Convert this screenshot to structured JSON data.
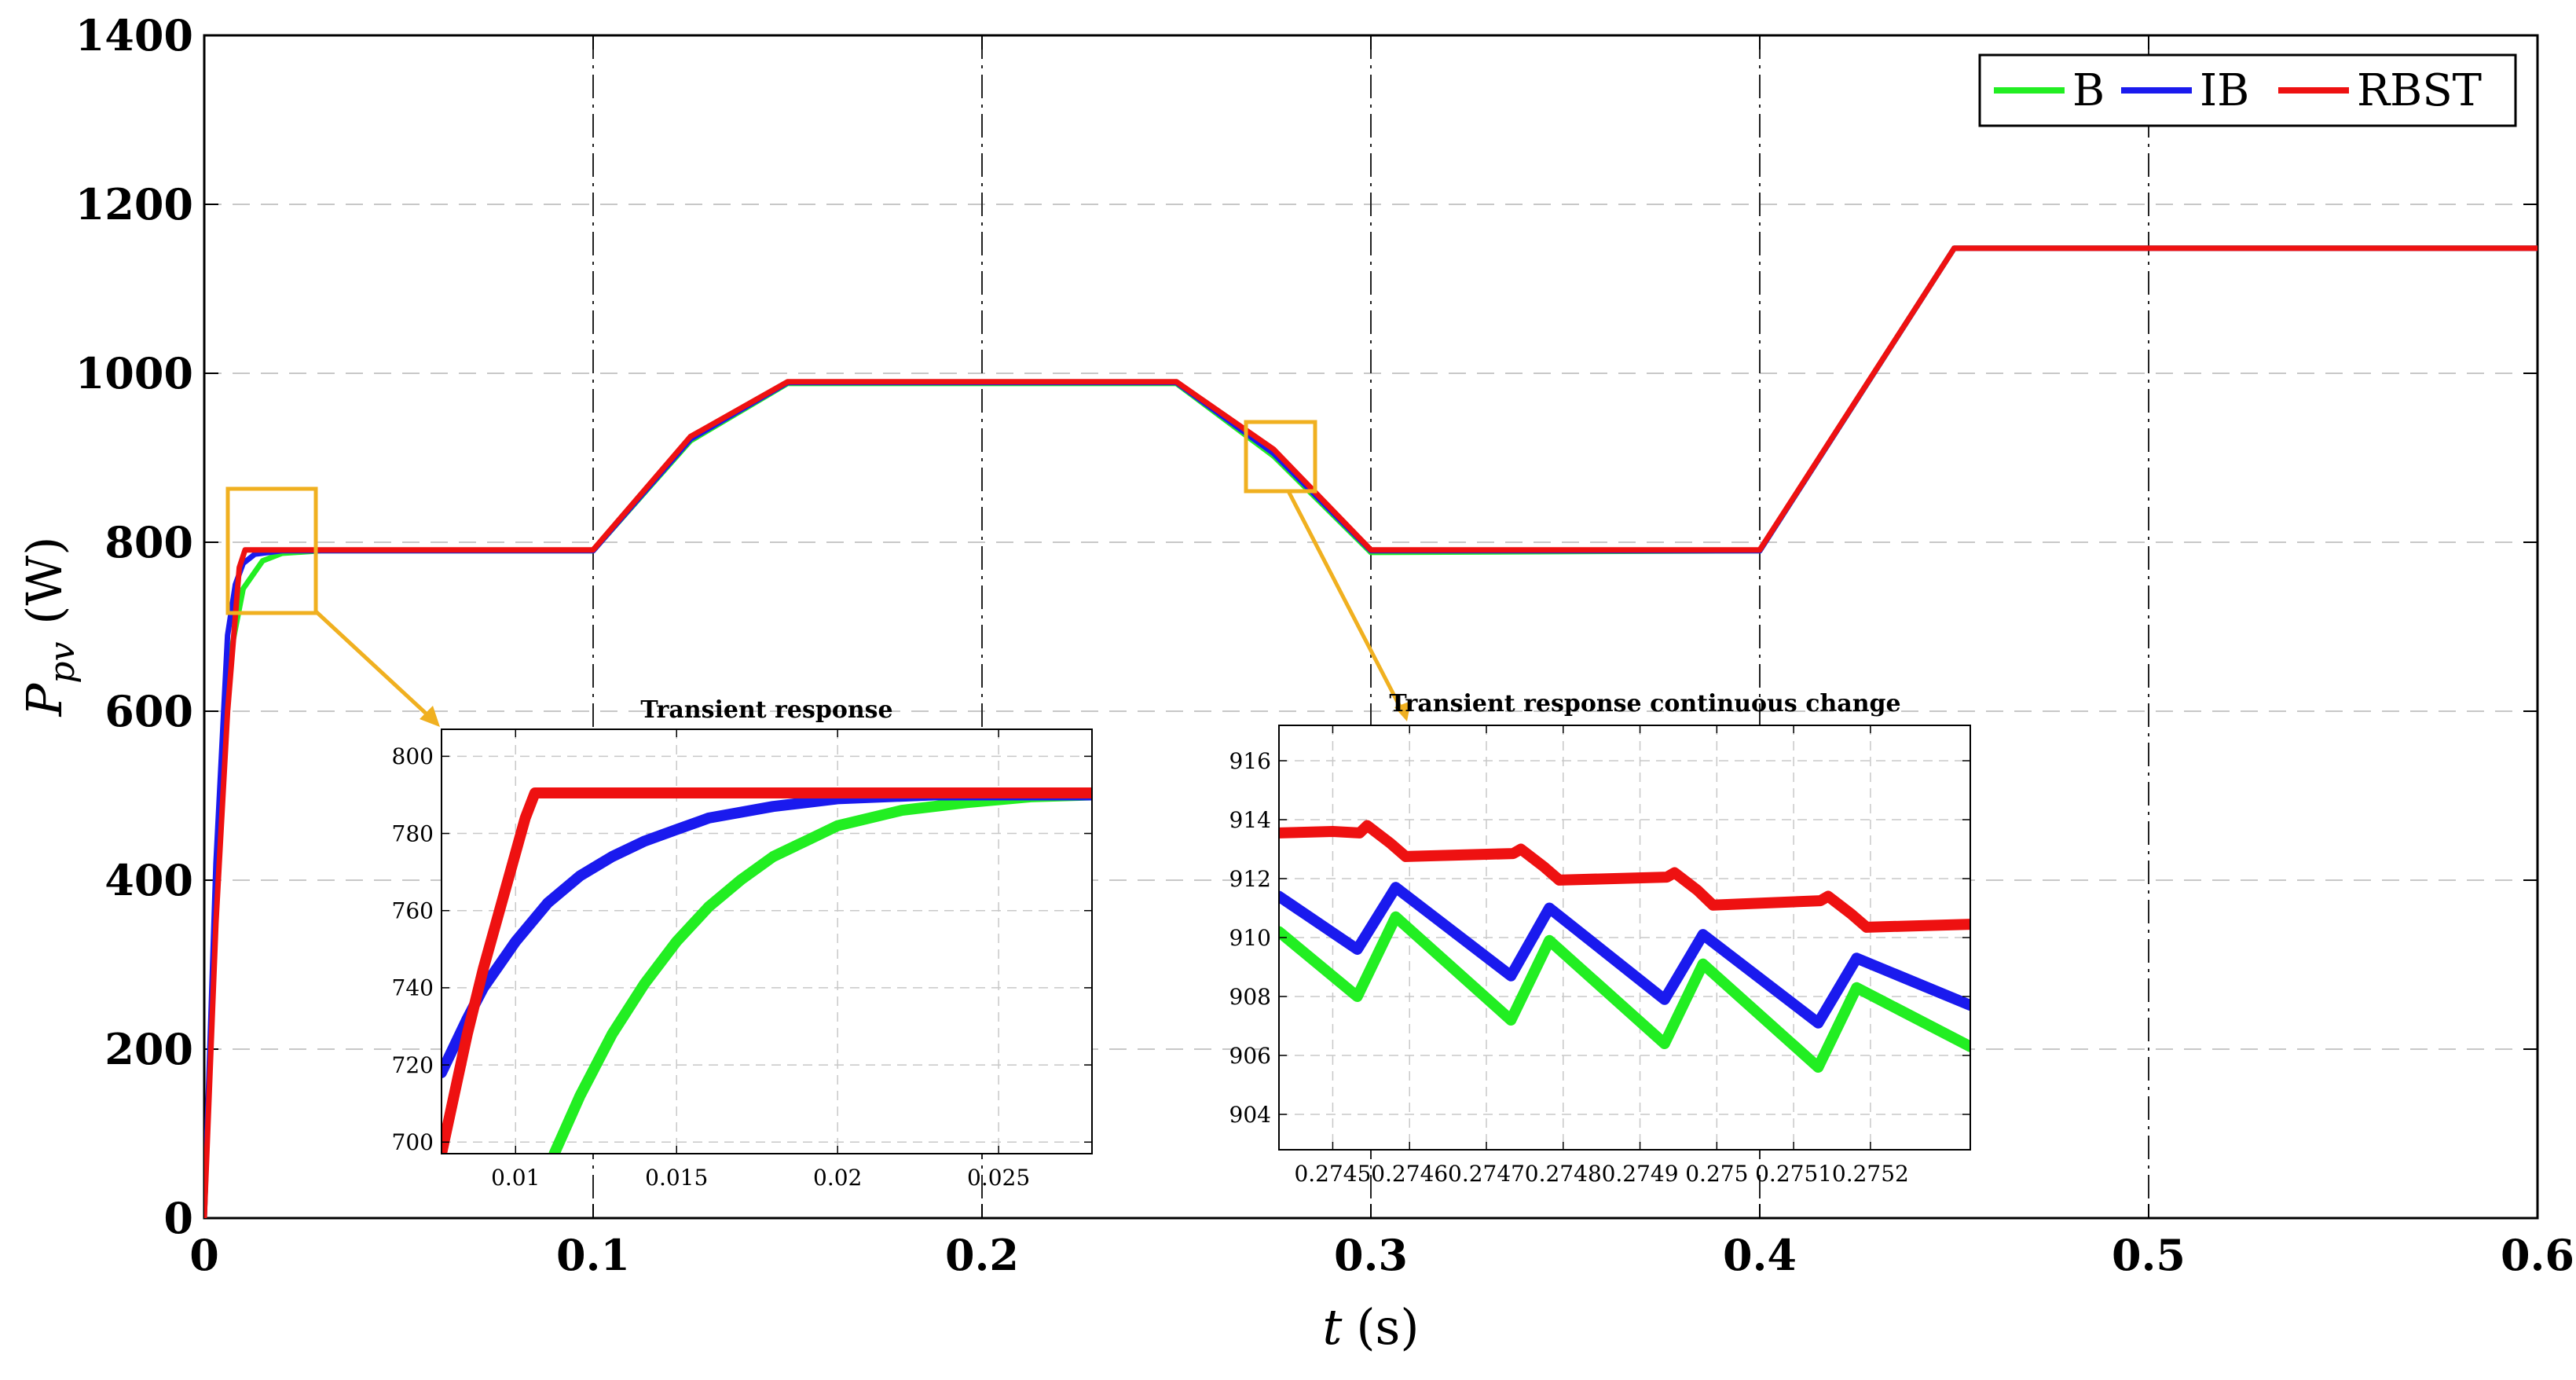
{
  "chart_data": {
    "type": "line",
    "xlabel": "t",
    "xlabel_unit": "(s)",
    "ylabel_symbol": "P",
    "ylabel_subscript": "pv",
    "ylabel_unit": "(W)",
    "xlim": [
      0,
      0.6
    ],
    "ylim": [
      0,
      1400
    ],
    "xticks": [
      "0",
      "0.1",
      "0.2",
      "0.3",
      "0.4",
      "0.5",
      "0.6"
    ],
    "yticks": [
      "0",
      "200",
      "400",
      "600",
      "800",
      "1000",
      "1200",
      "1400"
    ],
    "grid": true,
    "legend": {
      "position": "top-right",
      "entries": [
        "B",
        "IB",
        "RBST"
      ]
    },
    "colors": {
      "B": "#22ee22",
      "IB": "#1a1aee",
      "RBST": "#ee1111",
      "highlight": "#f0b020"
    },
    "series": [
      {
        "name": "B",
        "points": [
          [
            0,
            0
          ],
          [
            0.003,
            400
          ],
          [
            0.006,
            650
          ],
          [
            0.01,
            745
          ],
          [
            0.015,
            778
          ],
          [
            0.02,
            787
          ],
          [
            0.03,
            790
          ],
          [
            0.1,
            790
          ],
          [
            0.125,
            920
          ],
          [
            0.15,
            988
          ],
          [
            0.25,
            988
          ],
          [
            0.275,
            902
          ],
          [
            0.3,
            788
          ],
          [
            0.4,
            790
          ],
          [
            0.45,
            1148
          ],
          [
            0.6,
            1148
          ]
        ]
      },
      {
        "name": "IB",
        "points": [
          [
            0,
            0
          ],
          [
            0.003,
            420
          ],
          [
            0.006,
            690
          ],
          [
            0.008,
            750
          ],
          [
            0.01,
            775
          ],
          [
            0.013,
            786
          ],
          [
            0.02,
            790
          ],
          [
            0.1,
            790
          ],
          [
            0.125,
            922
          ],
          [
            0.15,
            989
          ],
          [
            0.25,
            989
          ],
          [
            0.275,
            905
          ],
          [
            0.3,
            790
          ],
          [
            0.4,
            790
          ],
          [
            0.45,
            1148
          ],
          [
            0.6,
            1148
          ]
        ]
      },
      {
        "name": "RBST",
        "points": [
          [
            0,
            0
          ],
          [
            0.003,
            350
          ],
          [
            0.006,
            600
          ],
          [
            0.009,
            770
          ],
          [
            0.0105,
            791
          ],
          [
            0.1,
            791
          ],
          [
            0.125,
            925
          ],
          [
            0.15,
            990
          ],
          [
            0.25,
            990
          ],
          [
            0.275,
            910
          ],
          [
            0.3,
            791
          ],
          [
            0.4,
            791
          ],
          [
            0.45,
            1148
          ],
          [
            0.6,
            1148
          ]
        ]
      }
    ],
    "insets": [
      {
        "title": "Transient response",
        "xlim": [
          0.0077,
          0.0279
        ],
        "ylim": [
          697,
          807
        ],
        "xticks": [
          "0.01",
          "0.015",
          "0.02",
          "0.025"
        ],
        "yticks": [
          "700",
          "720",
          "740",
          "760",
          "780",
          "800"
        ],
        "series": [
          {
            "name": "B",
            "points": [
              [
                0.0112,
                697
              ],
              [
                0.012,
                712
              ],
              [
                0.013,
                728
              ],
              [
                0.014,
                741
              ],
              [
                0.015,
                752
              ],
              [
                0.016,
                761
              ],
              [
                0.017,
                768
              ],
              [
                0.018,
                774
              ],
              [
                0.019,
                778
              ],
              [
                0.02,
                782
              ],
              [
                0.022,
                786
              ],
              [
                0.024,
                788
              ],
              [
                0.026,
                789.5
              ],
              [
                0.0279,
                790
              ]
            ]
          },
          {
            "name": "IB",
            "points": [
              [
                0.0077,
                718
              ],
              [
                0.0085,
                732
              ],
              [
                0.009,
                740
              ],
              [
                0.01,
                752
              ],
              [
                0.011,
                762
              ],
              [
                0.012,
                769
              ],
              [
                0.013,
                774
              ],
              [
                0.014,
                778
              ],
              [
                0.015,
                781
              ],
              [
                0.016,
                784
              ],
              [
                0.018,
                787
              ],
              [
                0.02,
                789
              ],
              [
                0.023,
                790
              ],
              [
                0.0279,
                790
              ]
            ]
          },
          {
            "name": "RBST",
            "points": [
              [
                0.0077,
                697
              ],
              [
                0.0085,
                728
              ],
              [
                0.009,
                745
              ],
              [
                0.0095,
                760
              ],
              [
                0.01,
                775
              ],
              [
                0.0103,
                784
              ],
              [
                0.0106,
                790.5
              ],
              [
                0.0279,
                790.5
              ]
            ]
          }
        ]
      },
      {
        "title": "Transient response continuous change",
        "xlim": [
          0.27443,
          0.27533
        ],
        "ylim": [
          902.8,
          917.2
        ],
        "xticks": [
          "0.2745",
          "0.2746",
          "0.2747",
          "0.2748",
          "0.2749",
          "0.275",
          "0.2751",
          "0.2752"
        ],
        "yticks": [
          "904",
          "906",
          "908",
          "910",
          "912",
          "914",
          "916"
        ],
        "series": [
          {
            "name": "B",
            "points": [
              [
                0.27443,
                910.2
              ],
              [
                0.274532,
                908
              ],
              [
                0.274582,
                910.7
              ],
              [
                0.274732,
                907.2
              ],
              [
                0.274782,
                909.9
              ],
              [
                0.274932,
                906.4
              ],
              [
                0.274982,
                909.1
              ],
              [
                0.275132,
                905.6
              ],
              [
                0.275182,
                908.3
              ],
              [
                0.27533,
                906.3
              ]
            ]
          },
          {
            "name": "IB",
            "points": [
              [
                0.27443,
                911.4
              ],
              [
                0.274532,
                909.6
              ],
              [
                0.274582,
                911.7
              ],
              [
                0.274732,
                908.7
              ],
              [
                0.274782,
                911
              ],
              [
                0.274932,
                907.9
              ],
              [
                0.274982,
                910.1
              ],
              [
                0.275132,
                907.1
              ],
              [
                0.275182,
                909.3
              ],
              [
                0.27533,
                907.7
              ]
            ]
          },
          {
            "name": "RBST",
            "points": [
              [
                0.27443,
                913.55
              ],
              [
                0.2745,
                913.6
              ],
              [
                0.274535,
                913.55
              ],
              [
                0.274545,
                913.8
              ],
              [
                0.274575,
                913.2
              ],
              [
                0.274595,
                912.75
              ],
              [
                0.274735,
                912.85
              ],
              [
                0.274745,
                913.0
              ],
              [
                0.274775,
                912.4
              ],
              [
                0.274795,
                911.95
              ],
              [
                0.274935,
                912.05
              ],
              [
                0.274945,
                912.2
              ],
              [
                0.274975,
                911.6
              ],
              [
                0.274995,
                911.1
              ],
              [
                0.275135,
                911.25
              ],
              [
                0.275145,
                911.4
              ],
              [
                0.275175,
                910.8
              ],
              [
                0.275195,
                910.35
              ],
              [
                0.27533,
                910.45
              ]
            ]
          }
        ]
      }
    ]
  }
}
